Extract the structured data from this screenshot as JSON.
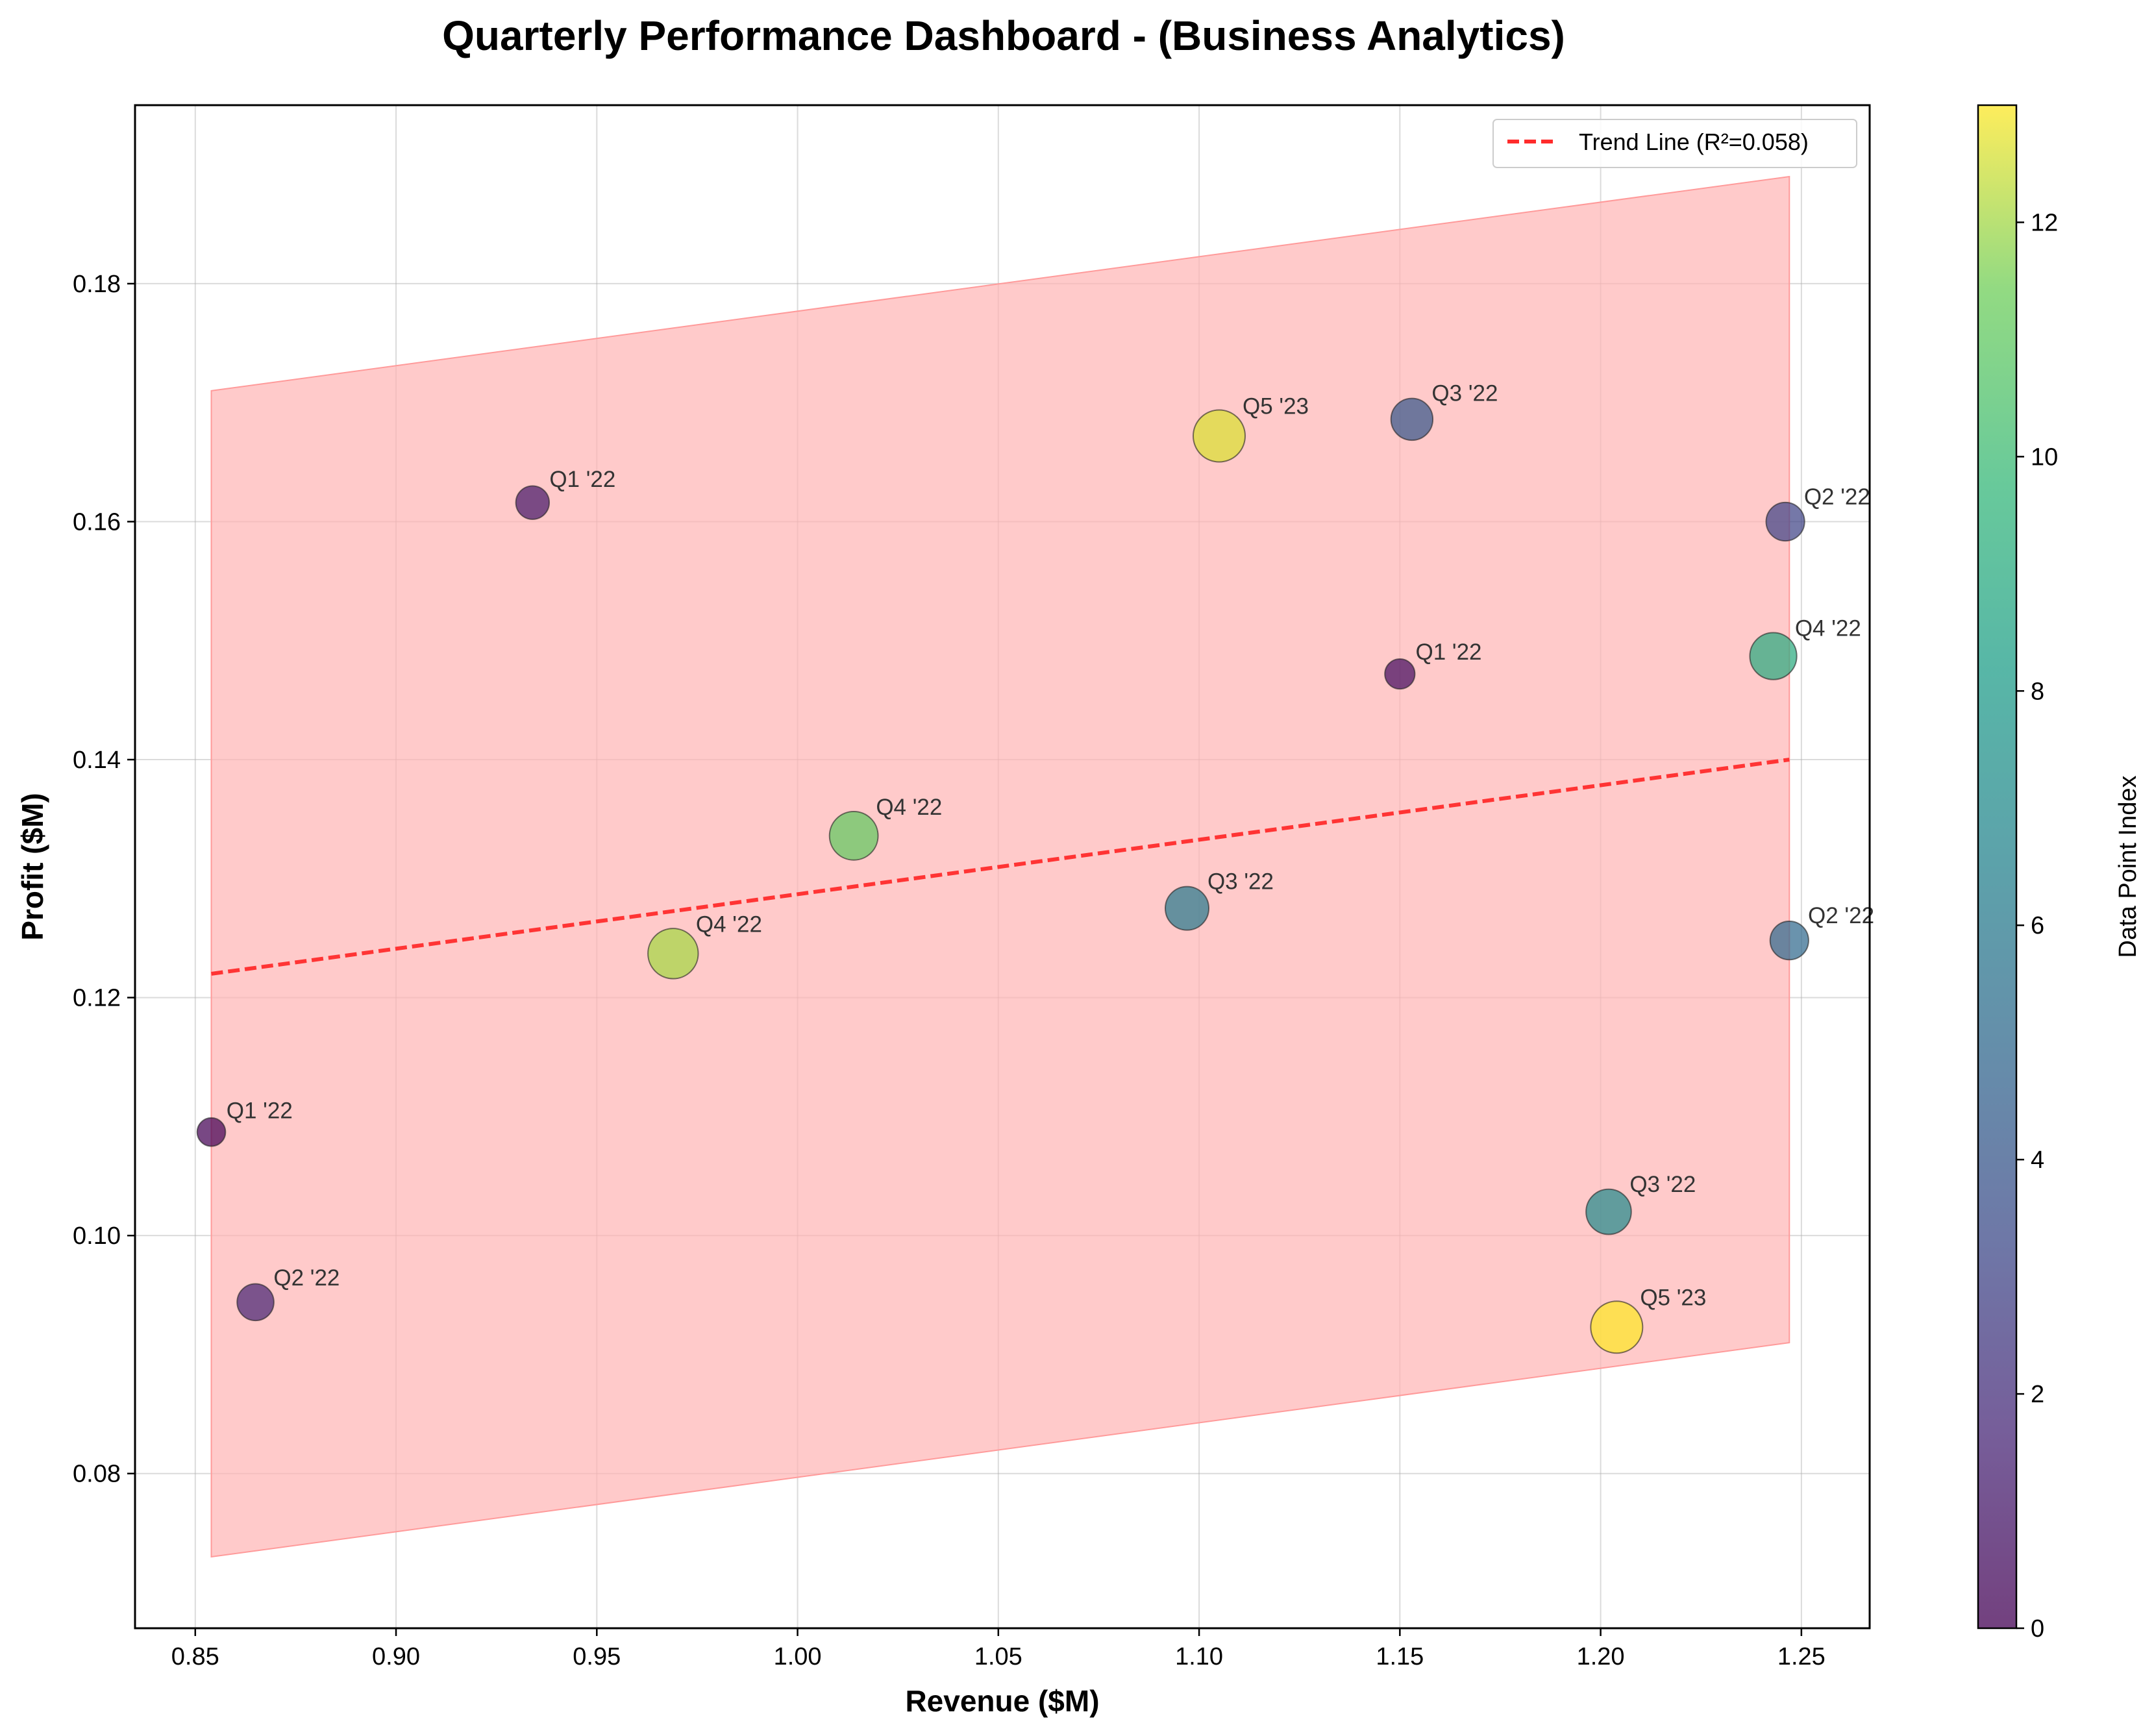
{
  "chart_data": {
    "type": "scatter",
    "title": "Quarterly Performance Dashboard - (Business Analytics)",
    "xlabel": "Revenue ($M)",
    "ylabel": "Profit ($M)",
    "xlim": [
      0.835,
      1.267
    ],
    "ylim": [
      0.067,
      0.195
    ],
    "xticks": [
      "0.85",
      "0.90",
      "0.95",
      "1.00",
      "1.05",
      "1.10",
      "1.15",
      "1.20",
      "1.25"
    ],
    "yticks": [
      "0.08",
      "0.10",
      "0.12",
      "0.14",
      "0.16",
      "0.18"
    ],
    "grid": true,
    "legend": {
      "placement": "upper right",
      "entries": [
        {
          "label": "Trend Line (R²=0.058)",
          "color": "#ff2b2b",
          "style": "dashed"
        }
      ]
    },
    "colorbar": {
      "label": "Data Point Index",
      "range": [
        0,
        13
      ],
      "ticks": [
        "0",
        "2",
        "4",
        "6",
        "8",
        "10",
        "12"
      ],
      "colormap": "viridis"
    },
    "trend_line": {
      "r_squared": 0.058,
      "x": [
        0.854,
        1.247
      ],
      "y": [
        0.122,
        0.14
      ],
      "color": "#ff2b2b"
    },
    "confidence_band": {
      "x": [
        0.854,
        1.247
      ],
      "upper": [
        0.171,
        0.189
      ],
      "lower": [
        0.073,
        0.091
      ],
      "color": "#ffb3b3"
    },
    "points": [
      {
        "label": "Q1 '22",
        "x": 0.854,
        "y": 0.1087,
        "index": 0,
        "size": 0.3
      },
      {
        "label": "Q1 '22",
        "x": 1.15,
        "y": 0.1472,
        "index": 0.5,
        "size": 0.35
      },
      {
        "label": "Q1 '22",
        "x": 0.934,
        "y": 0.1616,
        "index": 1,
        "size": 0.45
      },
      {
        "label": "Q2 '22",
        "x": 0.865,
        "y": 0.0944,
        "index": 1.5,
        "size": 0.55
      },
      {
        "label": "Q2 '22",
        "x": 1.246,
        "y": 0.16,
        "index": 3,
        "size": 0.6
      },
      {
        "label": "Q2 '22",
        "x": 1.247,
        "y": 0.1248,
        "index": 5,
        "size": 0.6
      },
      {
        "label": "Q3 '22",
        "x": 1.153,
        "y": 0.1686,
        "index": 4,
        "size": 0.7
      },
      {
        "label": "Q3 '22",
        "x": 1.097,
        "y": 0.1275,
        "index": 6,
        "size": 0.75
      },
      {
        "label": "Q3 '22",
        "x": 1.202,
        "y": 0.102,
        "index": 7,
        "size": 0.8
      },
      {
        "label": "Q4 '22",
        "x": 1.243,
        "y": 0.1487,
        "index": 9,
        "size": 0.85
      },
      {
        "label": "Q4 '22",
        "x": 1.014,
        "y": 0.1336,
        "index": 11,
        "size": 0.9
      },
      {
        "label": "Q4 '22",
        "x": 0.969,
        "y": 0.1237,
        "index": 12,
        "size": 0.95
      },
      {
        "label": "Q5 '23",
        "x": 1.105,
        "y": 0.1672,
        "index": 12.6,
        "size": 1.0
      },
      {
        "label": "Q5 '23",
        "x": 1.204,
        "y": 0.0923,
        "index": 13,
        "size": 1.0
      }
    ]
  }
}
